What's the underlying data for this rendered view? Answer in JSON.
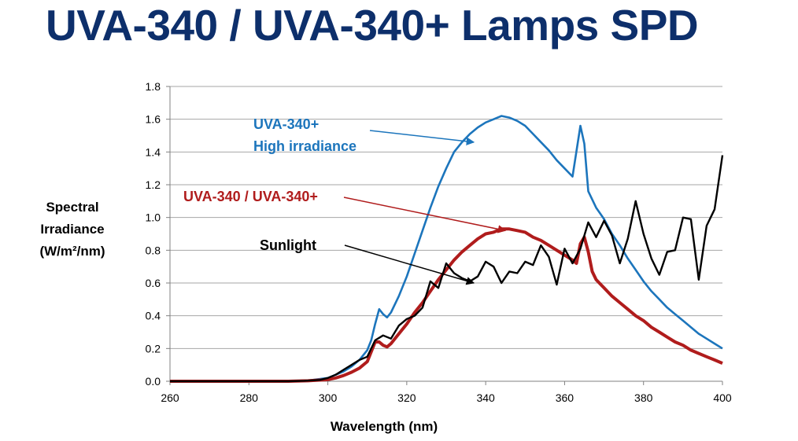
{
  "page": {
    "title": "UVA-340 / UVA-340+ Lamps SPD"
  },
  "chart_data": {
    "type": "line",
    "title": "",
    "xlabel": "Wavelength (nm)",
    "ylabel_lines": [
      "Spectral",
      "Irradiance",
      "(W/m²/nm)"
    ],
    "xlim": [
      260,
      400
    ],
    "ylim": [
      0,
      1.8
    ],
    "xticks": [
      "260",
      "280",
      "300",
      "320",
      "340",
      "360",
      "380",
      "400"
    ],
    "yticks": [
      "0.0",
      "0.2",
      "0.4",
      "0.6",
      "0.8",
      "1.0",
      "1.2",
      "1.4",
      "1.6",
      "1.8"
    ],
    "grid": "horizontal",
    "series": [
      {
        "name": "UVA-340+ High irradiance",
        "color": "#1c75bc",
        "points": [
          [
            260,
            0
          ],
          [
            280,
            0
          ],
          [
            290,
            0
          ],
          [
            295,
            0.005
          ],
          [
            300,
            0.02
          ],
          [
            302,
            0.04
          ],
          [
            304,
            0.06
          ],
          [
            306,
            0.09
          ],
          [
            308,
            0.13
          ],
          [
            310,
            0.19
          ],
          [
            311,
            0.25
          ],
          [
            312,
            0.35
          ],
          [
            313,
            0.44
          ],
          [
            314,
            0.41
          ],
          [
            315,
            0.39
          ],
          [
            316,
            0.42
          ],
          [
            318,
            0.52
          ],
          [
            320,
            0.64
          ],
          [
            322,
            0.78
          ],
          [
            324,
            0.92
          ],
          [
            326,
            1.06
          ],
          [
            328,
            1.19
          ],
          [
            330,
            1.3
          ],
          [
            332,
            1.4
          ],
          [
            334,
            1.46
          ],
          [
            336,
            1.51
          ],
          [
            338,
            1.55
          ],
          [
            340,
            1.58
          ],
          [
            342,
            1.6
          ],
          [
            344,
            1.62
          ],
          [
            346,
            1.61
          ],
          [
            348,
            1.59
          ],
          [
            350,
            1.56
          ],
          [
            352,
            1.51
          ],
          [
            354,
            1.46
          ],
          [
            356,
            1.41
          ],
          [
            358,
            1.35
          ],
          [
            360,
            1.3
          ],
          [
            362,
            1.25
          ],
          [
            364,
            1.56
          ],
          [
            365,
            1.45
          ],
          [
            366,
            1.16
          ],
          [
            368,
            1.06
          ],
          [
            370,
            0.99
          ],
          [
            372,
            0.9
          ],
          [
            374,
            0.83
          ],
          [
            376,
            0.75
          ],
          [
            378,
            0.68
          ],
          [
            380,
            0.61
          ],
          [
            382,
            0.55
          ],
          [
            384,
            0.5
          ],
          [
            386,
            0.45
          ],
          [
            388,
            0.41
          ],
          [
            390,
            0.37
          ],
          [
            392,
            0.33
          ],
          [
            394,
            0.29
          ],
          [
            396,
            0.26
          ],
          [
            398,
            0.23
          ],
          [
            400,
            0.2
          ]
        ]
      },
      {
        "name": "UVA-340 / UVA-340+",
        "color": "#b01c1c",
        "points": [
          [
            260,
            0
          ],
          [
            280,
            0
          ],
          [
            290,
            0
          ],
          [
            295,
            0.003
          ],
          [
            300,
            0.01
          ],
          [
            302,
            0.02
          ],
          [
            304,
            0.035
          ],
          [
            306,
            0.055
          ],
          [
            308,
            0.08
          ],
          [
            310,
            0.12
          ],
          [
            311,
            0.18
          ],
          [
            312,
            0.24
          ],
          [
            313,
            0.24
          ],
          [
            314,
            0.22
          ],
          [
            315,
            0.21
          ],
          [
            316,
            0.23
          ],
          [
            318,
            0.29
          ],
          [
            320,
            0.35
          ],
          [
            322,
            0.42
          ],
          [
            324,
            0.48
          ],
          [
            326,
            0.55
          ],
          [
            328,
            0.62
          ],
          [
            330,
            0.68
          ],
          [
            332,
            0.74
          ],
          [
            334,
            0.79
          ],
          [
            336,
            0.83
          ],
          [
            338,
            0.87
          ],
          [
            340,
            0.9
          ],
          [
            342,
            0.91
          ],
          [
            344,
            0.93
          ],
          [
            346,
            0.93
          ],
          [
            348,
            0.92
          ],
          [
            350,
            0.91
          ],
          [
            352,
            0.88
          ],
          [
            354,
            0.86
          ],
          [
            356,
            0.83
          ],
          [
            358,
            0.8
          ],
          [
            360,
            0.77
          ],
          [
            362,
            0.74
          ],
          [
            363,
            0.72
          ],
          [
            364,
            0.84
          ],
          [
            365,
            0.88
          ],
          [
            366,
            0.79
          ],
          [
            367,
            0.67
          ],
          [
            368,
            0.62
          ],
          [
            370,
            0.57
          ],
          [
            372,
            0.52
          ],
          [
            374,
            0.48
          ],
          [
            376,
            0.44
          ],
          [
            378,
            0.4
          ],
          [
            380,
            0.37
          ],
          [
            382,
            0.33
          ],
          [
            384,
            0.3
          ],
          [
            386,
            0.27
          ],
          [
            388,
            0.24
          ],
          [
            390,
            0.22
          ],
          [
            392,
            0.19
          ],
          [
            394,
            0.17
          ],
          [
            396,
            0.15
          ],
          [
            398,
            0.13
          ],
          [
            400,
            0.11
          ]
        ]
      },
      {
        "name": "Sunlight",
        "color": "#000000",
        "points": [
          [
            260,
            0
          ],
          [
            280,
            0
          ],
          [
            290,
            0
          ],
          [
            294,
            0.003
          ],
          [
            298,
            0.008
          ],
          [
            300,
            0.02
          ],
          [
            302,
            0.04
          ],
          [
            304,
            0.07
          ],
          [
            306,
            0.1
          ],
          [
            308,
            0.13
          ],
          [
            310,
            0.15
          ],
          [
            312,
            0.25
          ],
          [
            314,
            0.28
          ],
          [
            316,
            0.26
          ],
          [
            318,
            0.34
          ],
          [
            320,
            0.38
          ],
          [
            322,
            0.4
          ],
          [
            324,
            0.45
          ],
          [
            326,
            0.61
          ],
          [
            328,
            0.57
          ],
          [
            330,
            0.72
          ],
          [
            332,
            0.66
          ],
          [
            334,
            0.63
          ],
          [
            336,
            0.61
          ],
          [
            338,
            0.64
          ],
          [
            340,
            0.73
          ],
          [
            342,
            0.7
          ],
          [
            344,
            0.6
          ],
          [
            346,
            0.67
          ],
          [
            348,
            0.66
          ],
          [
            350,
            0.73
          ],
          [
            352,
            0.71
          ],
          [
            354,
            0.83
          ],
          [
            356,
            0.76
          ],
          [
            358,
            0.59
          ],
          [
            360,
            0.81
          ],
          [
            362,
            0.72
          ],
          [
            364,
            0.81
          ],
          [
            366,
            0.97
          ],
          [
            368,
            0.88
          ],
          [
            370,
            0.98
          ],
          [
            372,
            0.89
          ],
          [
            374,
            0.72
          ],
          [
            376,
            0.87
          ],
          [
            378,
            1.1
          ],
          [
            380,
            0.9
          ],
          [
            382,
            0.75
          ],
          [
            384,
            0.65
          ],
          [
            386,
            0.79
          ],
          [
            388,
            0.8
          ],
          [
            390,
            1.0
          ],
          [
            392,
            0.99
          ],
          [
            394,
            0.62
          ],
          [
            396,
            0.95
          ],
          [
            398,
            1.05
          ],
          [
            400,
            1.38
          ]
        ]
      }
    ],
    "annotations": [
      {
        "lines": [
          "UVA-340+",
          "High irradiance"
        ],
        "color": "#1c75bc",
        "points_to": [
          337,
          1.46
        ],
        "from": [
          311,
          1.54
        ]
      },
      {
        "lines": [
          "UVA-340 / UVA-340+"
        ],
        "color": "#b01c1c",
        "points_to": [
          345,
          0.92
        ],
        "from": [
          305,
          1.12
        ]
      },
      {
        "lines": [
          "Sunlight"
        ],
        "color": "#000000",
        "points_to": [
          337,
          0.6
        ],
        "from": [
          304,
          0.84
        ]
      }
    ]
  }
}
